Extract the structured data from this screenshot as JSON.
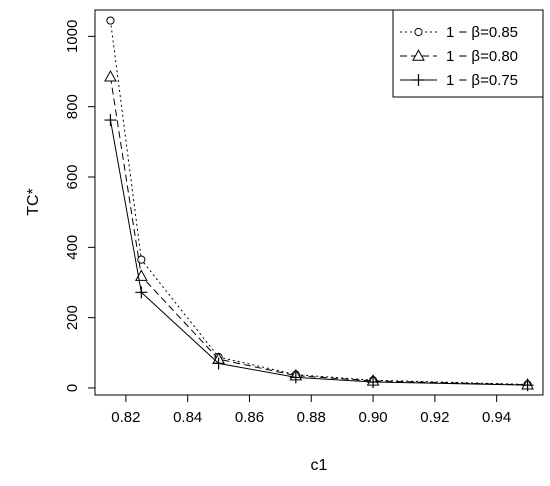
{
  "chart_data": {
    "type": "line",
    "title": "",
    "xlabel": "c1",
    "ylabel": "TC*",
    "xlim": [
      0.81,
      0.955
    ],
    "ylim": [
      -20,
      1075
    ],
    "x_ticks": [
      0.82,
      0.84,
      0.86,
      0.88,
      0.9,
      0.92,
      0.94
    ],
    "x_tick_labels": [
      "0.82",
      "0.84",
      "0.86",
      "0.88",
      "0.90",
      "0.92",
      "0.94"
    ],
    "y_ticks": [
      0,
      200,
      400,
      600,
      800,
      1000
    ],
    "y_tick_labels": [
      "0",
      "200",
      "400",
      "600",
      "800",
      "1000"
    ],
    "grid": false,
    "legend_position": "top-right",
    "x": [
      0.815,
      0.825,
      0.85,
      0.875,
      0.9,
      0.95
    ],
    "series": [
      {
        "name": "1 − β=0.85",
        "values": [
          1045,
          365,
          88,
          38,
          22,
          10
        ],
        "line_style": "dotted",
        "marker": "circle",
        "color": "#000000"
      },
      {
        "name": "1 − β=0.80",
        "values": [
          885,
          318,
          82,
          35,
          20,
          9
        ],
        "line_style": "dashed",
        "marker": "triangle",
        "color": "#000000"
      },
      {
        "name": "1 − β=0.75",
        "values": [
          762,
          272,
          70,
          30,
          17,
          8
        ],
        "line_style": "solid",
        "marker": "plus",
        "color": "#000000"
      }
    ]
  }
}
